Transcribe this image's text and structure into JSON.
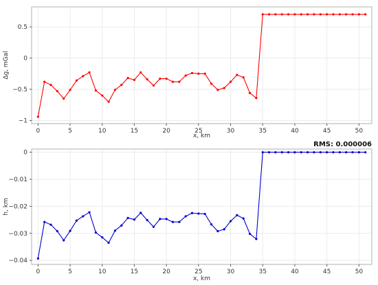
{
  "chart_data": [
    {
      "type": "line",
      "xlabel": "x, km",
      "ylabel": "Δg, mGal",
      "xlim": [
        -1,
        52
      ],
      "ylim": [
        -1.05,
        0.82
      ],
      "x_ticks": [
        0,
        5,
        10,
        15,
        20,
        25,
        30,
        35,
        40,
        45,
        50
      ],
      "y_ticks": [
        -1,
        -0.5,
        0,
        0.5
      ],
      "x_tick_labels": [
        "0",
        "5",
        "10",
        "15",
        "20",
        "25",
        "30",
        "35",
        "40",
        "45",
        "50"
      ],
      "y_tick_labels": [
        "−1",
        "−0.5",
        "0",
        "0.5"
      ],
      "grid": true,
      "series": [
        {
          "color": "#ff0000",
          "x": [
            0,
            1,
            2,
            3,
            4,
            5,
            6,
            7,
            8,
            9,
            10,
            11,
            12,
            13,
            14,
            15,
            16,
            17,
            18,
            19,
            20,
            21,
            22,
            23,
            24,
            25,
            26,
            27,
            28,
            29,
            30,
            31,
            32,
            33,
            34,
            35,
            36,
            37,
            38,
            39,
            40,
            41,
            42,
            43,
            44,
            45,
            46,
            47,
            48,
            49,
            50,
            51
          ],
          "values": [
            -0.94,
            -0.38,
            -0.43,
            -0.53,
            -0.65,
            -0.51,
            -0.36,
            -0.29,
            -0.23,
            -0.52,
            -0.6,
            -0.7,
            -0.51,
            -0.43,
            -0.32,
            -0.35,
            -0.23,
            -0.34,
            -0.44,
            -0.33,
            -0.33,
            -0.38,
            -0.38,
            -0.28,
            -0.24,
            -0.25,
            -0.25,
            -0.41,
            -0.51,
            -0.48,
            -0.38,
            -0.27,
            -0.31,
            -0.56,
            -0.64,
            0.7,
            0.7,
            0.7,
            0.7,
            0.7,
            0.7,
            0.7,
            0.7,
            0.7,
            0.7,
            0.7,
            0.7,
            0.7,
            0.7,
            0.7,
            0.7,
            0.7
          ]
        }
      ]
    },
    {
      "type": "line",
      "xlabel": "x, km",
      "ylabel": "h, km",
      "xlim": [
        -1,
        52
      ],
      "ylim": [
        -0.0415,
        0.0012
      ],
      "x_ticks": [
        0,
        5,
        10,
        15,
        20,
        25,
        30,
        35,
        40,
        45,
        50
      ],
      "y_ticks": [
        -0.04,
        -0.03,
        -0.02,
        -0.01,
        0
      ],
      "x_tick_labels": [
        "0",
        "5",
        "10",
        "15",
        "20",
        "25",
        "30",
        "35",
        "40",
        "45",
        "50"
      ],
      "y_tick_labels": [
        "−0.04",
        "−0.03",
        "−0.02",
        "−0.01",
        "0"
      ],
      "annotation": "RMS: 0.000006",
      "grid": true,
      "series": [
        {
          "color": "#0000cc",
          "x": [
            0,
            1,
            2,
            3,
            4,
            5,
            6,
            7,
            8,
            9,
            10,
            11,
            12,
            13,
            14,
            15,
            16,
            17,
            18,
            19,
            20,
            21,
            22,
            23,
            24,
            25,
            26,
            27,
            28,
            29,
            30,
            31,
            32,
            33,
            34,
            35,
            36,
            37,
            38,
            39,
            40,
            41,
            42,
            43,
            44,
            45,
            46,
            47,
            48,
            49,
            50,
            51
          ],
          "values": [
            -0.0393,
            -0.0258,
            -0.0268,
            -0.0292,
            -0.0326,
            -0.0291,
            -0.0253,
            -0.0237,
            -0.0222,
            -0.0297,
            -0.0315,
            -0.0335,
            -0.029,
            -0.0271,
            -0.0243,
            -0.0249,
            -0.0224,
            -0.0251,
            -0.0276,
            -0.0247,
            -0.0247,
            -0.0258,
            -0.0258,
            -0.0237,
            -0.0225,
            -0.0227,
            -0.0228,
            -0.0267,
            -0.0292,
            -0.0285,
            -0.0255,
            -0.0233,
            -0.0245,
            -0.0302,
            -0.0321,
            0,
            0,
            0,
            0,
            0,
            0,
            0,
            0,
            0,
            0,
            0,
            0,
            0,
            0,
            0,
            0,
            0
          ]
        }
      ]
    }
  ]
}
